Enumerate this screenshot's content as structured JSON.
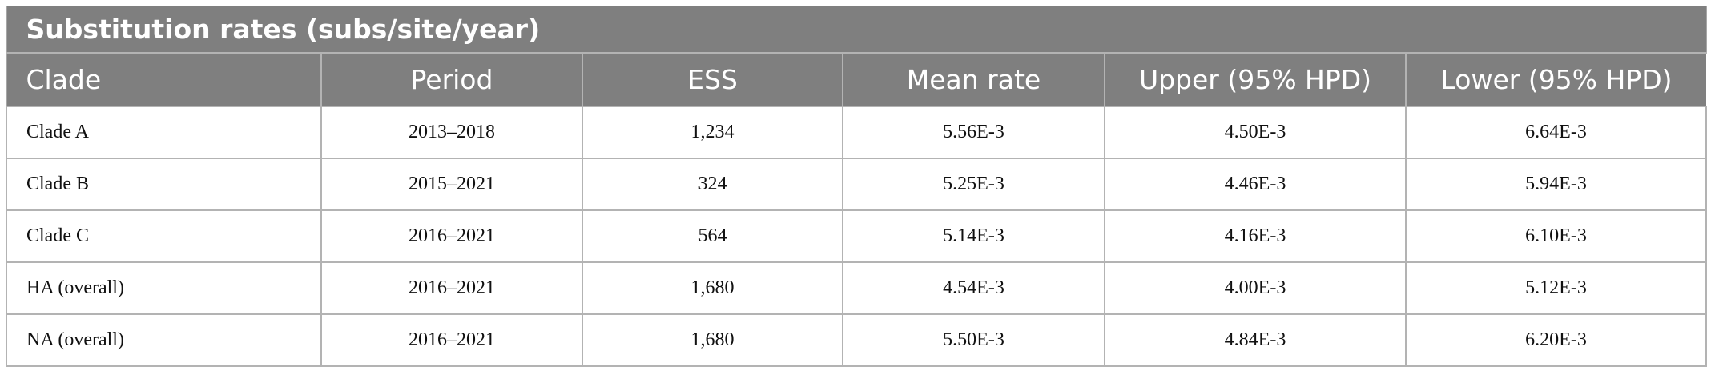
{
  "table": {
    "title": "Substitution rates (subs/site/year)",
    "columns": [
      "Clade",
      "Period",
      "ESS",
      "Mean rate",
      "Upper (95% HPD)",
      "Lower (95% HPD)"
    ],
    "rows": [
      [
        "Clade A",
        "2013–2018",
        "1,234",
        "5.56E-3",
        "4.50E-3",
        "6.64E-3"
      ],
      [
        "Clade B",
        "2015–2021",
        "324",
        "5.25E-3",
        "4.46E-3",
        "5.94E-3"
      ],
      [
        "Clade C",
        "2016–2021",
        "564",
        "5.14E-3",
        "4.16E-3",
        "6.10E-3"
      ],
      [
        "HA (overall)",
        "2016–2021",
        "1,680",
        "4.54E-3",
        "4.00E-3",
        "5.12E-3"
      ],
      [
        "NA (overall)",
        "2016–2021",
        "1,680",
        "5.50E-3",
        "4.84E-3",
        "6.20E-3"
      ]
    ]
  }
}
